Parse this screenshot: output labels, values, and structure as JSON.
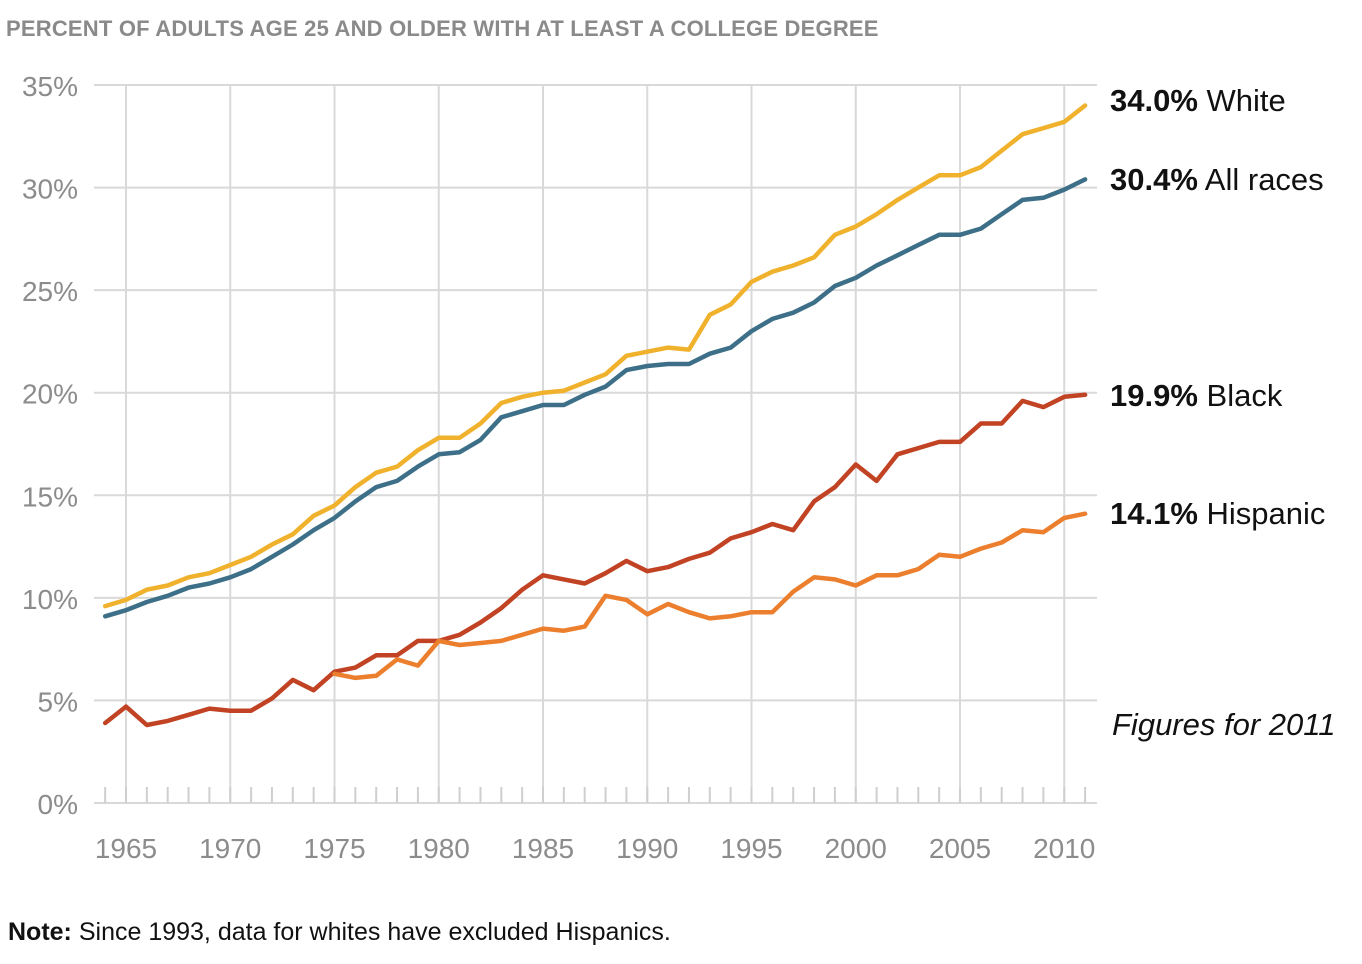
{
  "title": "PERCENT OF ADULTS AGE 25 AND OLDER WITH AT LEAST A COLLEGE DEGREE",
  "note": {
    "label": "Note:",
    "text": " Since 1993, data for whites have excluded Hispanics."
  },
  "figures_note": "Figures for 2011",
  "chart_data": {
    "type": "line",
    "title": "PERCENT OF ADULTS AGE 25 AND OLDER WITH AT LEAST A COLLEGE DEGREE",
    "xlabel": "",
    "ylabel": "",
    "xlim": [
      1964,
      2011
    ],
    "ylim": [
      0,
      35
    ],
    "grid": true,
    "x_ticks": [
      "1965",
      "1970",
      "1975",
      "1980",
      "1985",
      "1990",
      "1995",
      "2000",
      "2005",
      "2010"
    ],
    "x_tick_values": [
      1965,
      1970,
      1975,
      1980,
      1985,
      1990,
      1995,
      2000,
      2005,
      2010
    ],
    "y_ticks": [
      "0%",
      "5%",
      "10%",
      "15%",
      "20%",
      "25%",
      "30%",
      "35%"
    ],
    "y_tick_values": [
      0,
      5,
      10,
      15,
      20,
      25,
      30,
      35
    ],
    "end_labels": [
      {
        "series": "White",
        "value": "34.0%",
        "name": "White"
      },
      {
        "series": "All races",
        "value": "30.4%",
        "name": "All races"
      },
      {
        "series": "Black",
        "value": "19.9%",
        "name": "Black"
      },
      {
        "series": "Hispanic",
        "value": "14.1%",
        "name": "Hispanic"
      }
    ],
    "series": [
      {
        "name": "White",
        "color": "#f0b22d",
        "x": [
          1964,
          1965,
          1966,
          1967,
          1968,
          1969,
          1970,
          1971,
          1972,
          1973,
          1974,
          1975,
          1976,
          1977,
          1978,
          1979,
          1980,
          1981,
          1982,
          1983,
          1984,
          1985,
          1986,
          1987,
          1988,
          1989,
          1990,
          1991,
          1992,
          1993,
          1994,
          1995,
          1996,
          1997,
          1998,
          1999,
          2000,
          2001,
          2002,
          2003,
          2004,
          2005,
          2006,
          2007,
          2008,
          2009,
          2010,
          2011
        ],
        "values": [
          9.6,
          9.9,
          10.4,
          10.6,
          11.0,
          11.2,
          11.6,
          12.0,
          12.6,
          13.1,
          14.0,
          14.5,
          15.4,
          16.1,
          16.4,
          17.2,
          17.8,
          17.8,
          18.5,
          19.5,
          19.8,
          20.0,
          20.1,
          20.5,
          20.9,
          21.8,
          22.0,
          22.2,
          22.1,
          23.8,
          24.3,
          25.4,
          25.9,
          26.2,
          26.6,
          27.7,
          28.1,
          28.7,
          29.4,
          30.0,
          30.6,
          30.6,
          31.0,
          31.8,
          32.6,
          32.9,
          33.2,
          34.0
        ]
      },
      {
        "name": "All races",
        "color": "#3d7088",
        "x": [
          1964,
          1965,
          1966,
          1967,
          1968,
          1969,
          1970,
          1971,
          1972,
          1973,
          1974,
          1975,
          1976,
          1977,
          1978,
          1979,
          1980,
          1981,
          1982,
          1983,
          1984,
          1985,
          1986,
          1987,
          1988,
          1989,
          1990,
          1991,
          1992,
          1993,
          1994,
          1995,
          1996,
          1997,
          1998,
          1999,
          2000,
          2001,
          2002,
          2003,
          2004,
          2005,
          2006,
          2007,
          2008,
          2009,
          2010,
          2011
        ],
        "values": [
          9.1,
          9.4,
          9.8,
          10.1,
          10.5,
          10.7,
          11.0,
          11.4,
          12.0,
          12.6,
          13.3,
          13.9,
          14.7,
          15.4,
          15.7,
          16.4,
          17.0,
          17.1,
          17.7,
          18.8,
          19.1,
          19.4,
          19.4,
          19.9,
          20.3,
          21.1,
          21.3,
          21.4,
          21.4,
          21.9,
          22.2,
          23.0,
          23.6,
          23.9,
          24.4,
          25.2,
          25.6,
          26.2,
          26.7,
          27.2,
          27.7,
          27.7,
          28.0,
          28.7,
          29.4,
          29.5,
          29.9,
          30.4
        ]
      },
      {
        "name": "Black",
        "color": "#c14324",
        "x": [
          1964,
          1965,
          1966,
          1967,
          1968,
          1969,
          1970,
          1971,
          1972,
          1973,
          1974,
          1975,
          1976,
          1977,
          1978,
          1979,
          1980,
          1981,
          1982,
          1983,
          1984,
          1985,
          1986,
          1987,
          1988,
          1989,
          1990,
          1991,
          1992,
          1993,
          1994,
          1995,
          1996,
          1997,
          1998,
          1999,
          2000,
          2001,
          2002,
          2003,
          2004,
          2005,
          2006,
          2007,
          2008,
          2009,
          2010,
          2011
        ],
        "values": [
          3.9,
          4.7,
          3.8,
          4.0,
          4.3,
          4.6,
          4.5,
          4.5,
          5.1,
          6.0,
          5.5,
          6.4,
          6.6,
          7.2,
          7.2,
          7.9,
          7.9,
          8.2,
          8.8,
          9.5,
          10.4,
          11.1,
          10.9,
          10.7,
          11.2,
          11.8,
          11.3,
          11.5,
          11.9,
          12.2,
          12.9,
          13.2,
          13.6,
          13.3,
          14.7,
          15.4,
          16.5,
          15.7,
          17.0,
          17.3,
          17.6,
          17.6,
          18.5,
          18.5,
          19.6,
          19.3,
          19.8,
          19.9
        ]
      },
      {
        "name": "Hispanic",
        "color": "#ec7f2d",
        "x": [
          1975,
          1976,
          1977,
          1978,
          1979,
          1980,
          1981,
          1982,
          1983,
          1984,
          1985,
          1986,
          1987,
          1988,
          1989,
          1990,
          1991,
          1992,
          1993,
          1994,
          1995,
          1996,
          1997,
          1998,
          1999,
          2000,
          2001,
          2002,
          2003,
          2004,
          2005,
          2006,
          2007,
          2008,
          2009,
          2010,
          2011
        ],
        "values": [
          6.3,
          6.1,
          6.2,
          7.0,
          6.7,
          7.9,
          7.7,
          7.8,
          7.9,
          8.2,
          8.5,
          8.4,
          8.6,
          10.1,
          9.9,
          9.2,
          9.7,
          9.3,
          9.0,
          9.1,
          9.3,
          9.3,
          10.3,
          11.0,
          10.9,
          10.6,
          11.1,
          11.1,
          11.4,
          12.1,
          12.0,
          12.4,
          12.7,
          13.3,
          13.2,
          13.9,
          14.1
        ]
      }
    ]
  }
}
